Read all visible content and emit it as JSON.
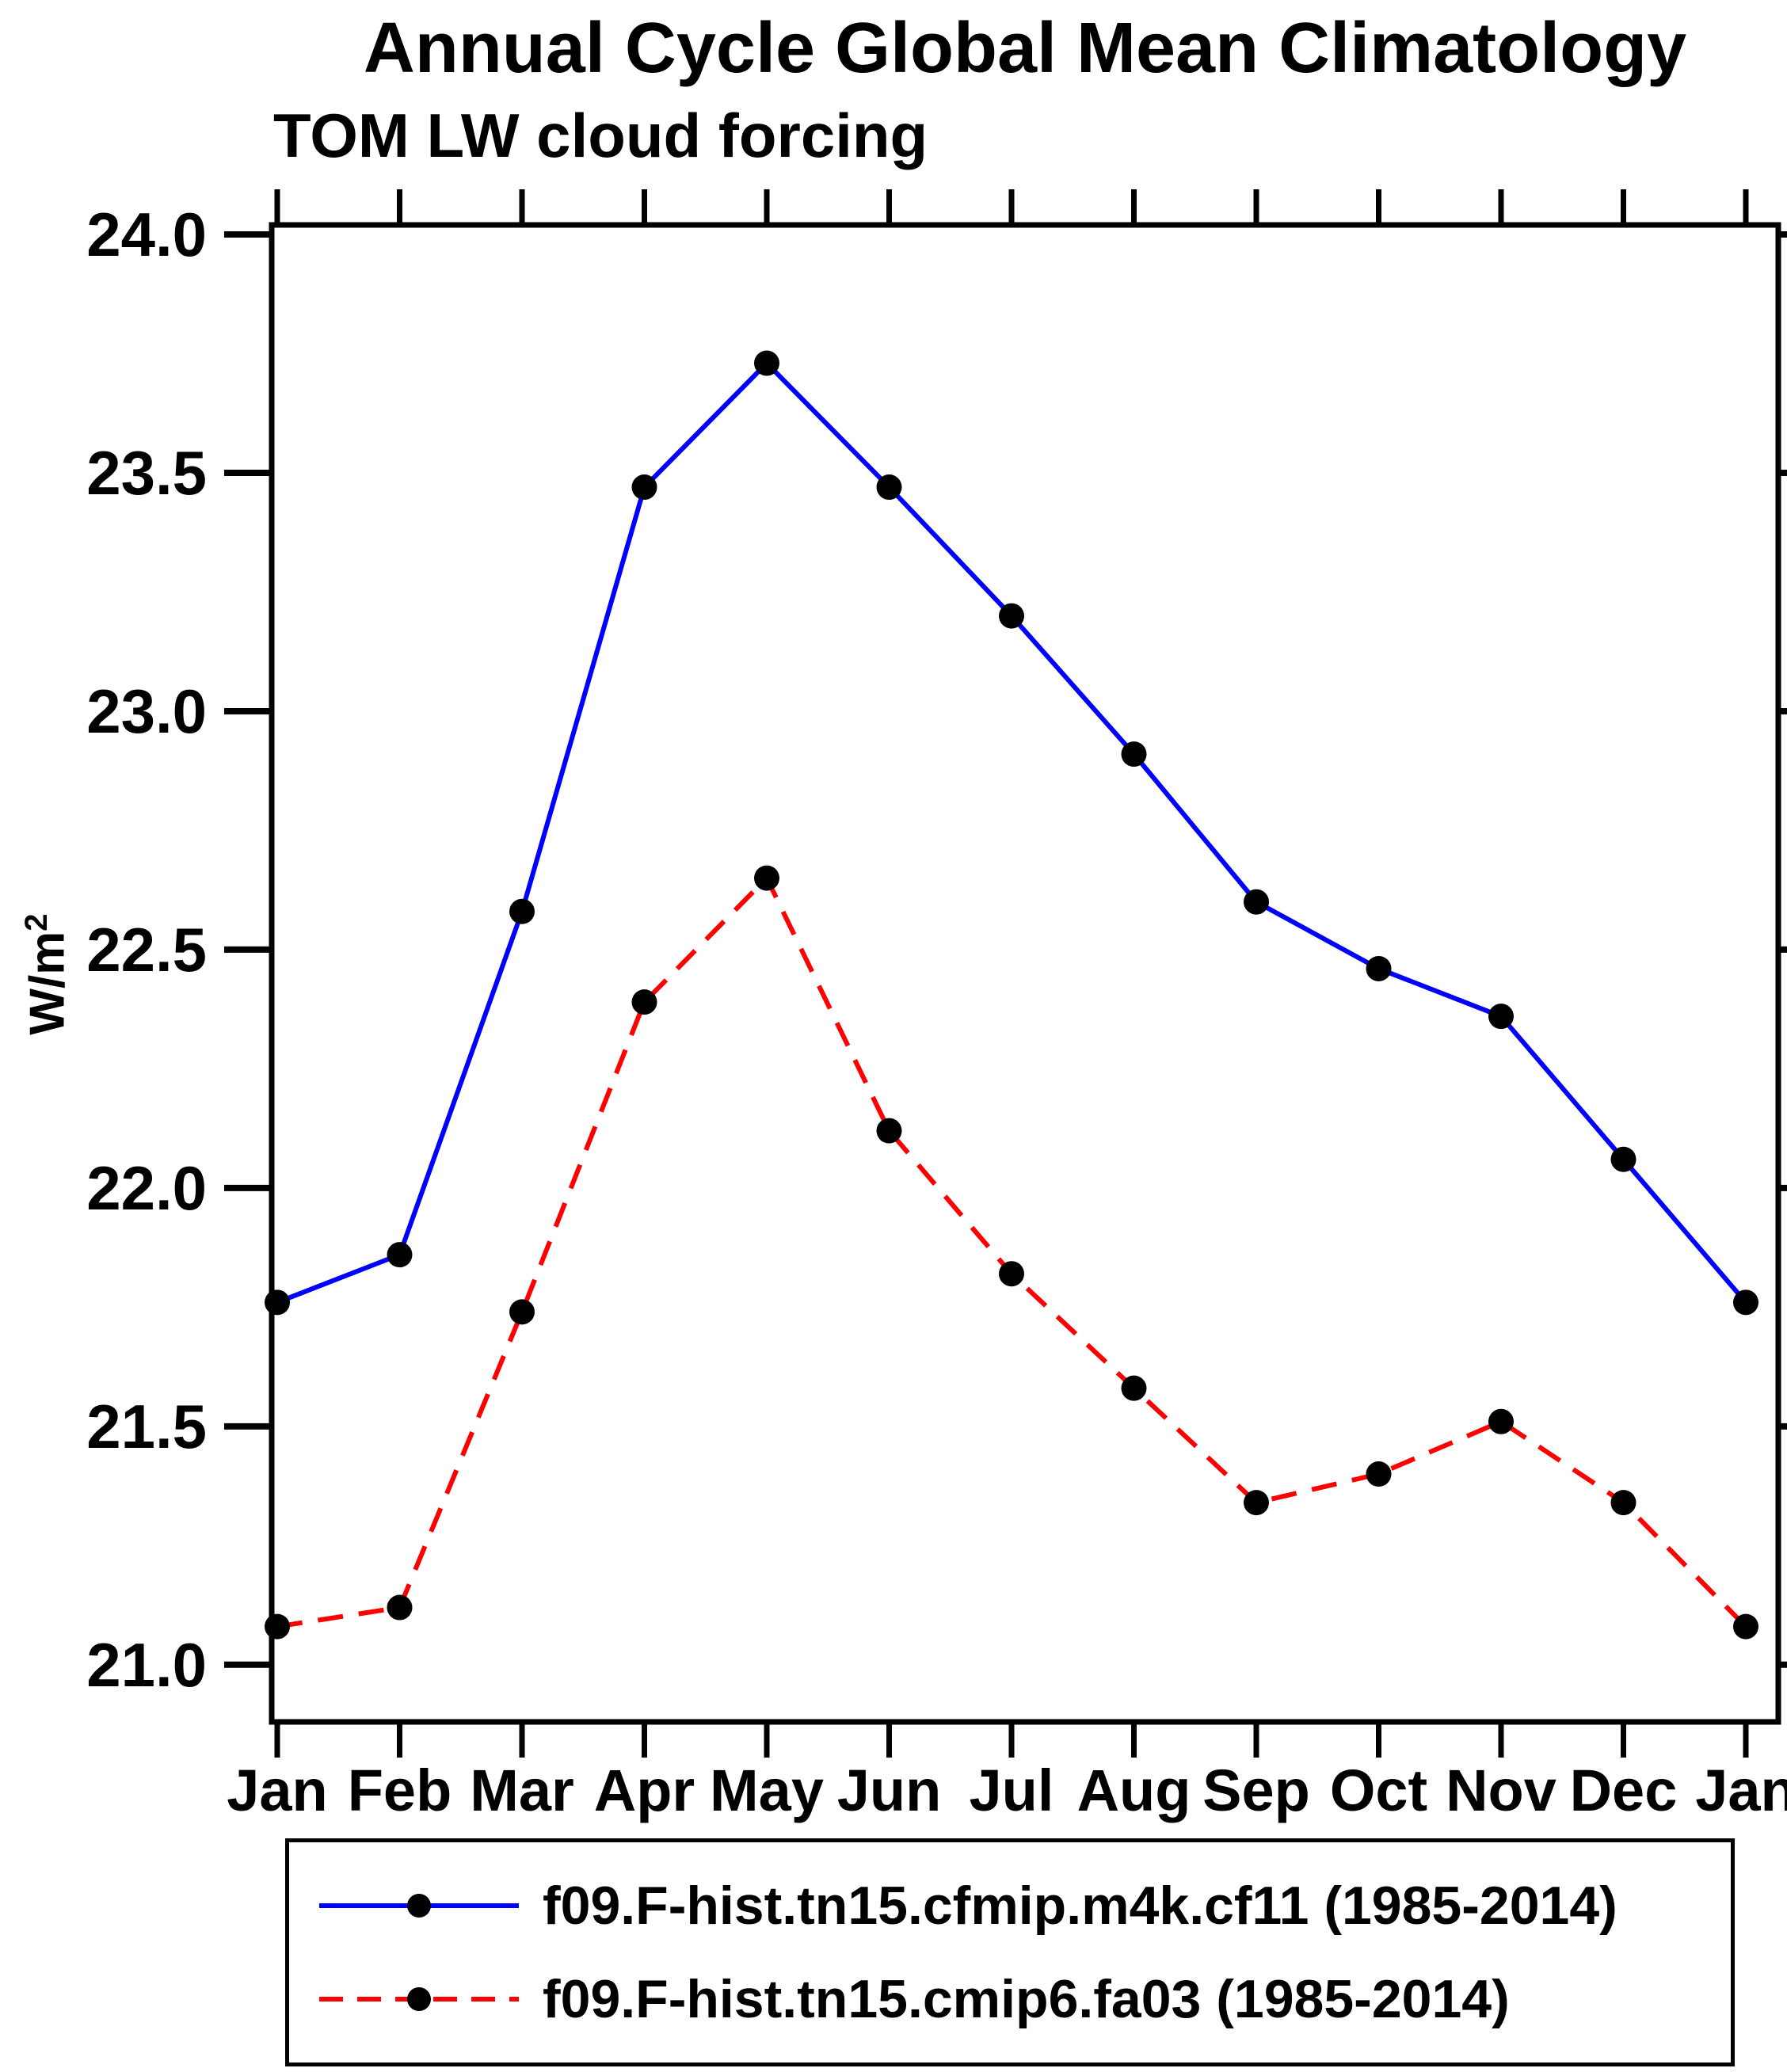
{
  "chart_data": {
    "type": "line",
    "title": "Annual Cycle Global Mean Climatology",
    "subtitle": "TOM LW cloud forcing",
    "ylabel_base": "W/m",
    "ylabel_exponent": "2",
    "xlabel": "",
    "categories": [
      "Jan",
      "Feb",
      "Mar",
      "Apr",
      "May",
      "Jun",
      "Jul",
      "Aug",
      "Sep",
      "Oct",
      "Nov",
      "Dec",
      "Jan"
    ],
    "yticks": [
      21.0,
      21.5,
      22.0,
      22.5,
      23.0,
      23.5,
      24.0
    ],
    "ylim": [
      20.88,
      24.02
    ],
    "grid": false,
    "legend_position": "bottom",
    "axis_color": "#000000",
    "marker": {
      "shape": "circle",
      "color": "#000000"
    },
    "series": [
      {
        "name": "f09.F-hist.tn15.cfmip.m4k.cf11 (1985-2014)",
        "color": "#0000ff",
        "line_style": "solid",
        "values": [
          21.76,
          21.86,
          22.58,
          23.47,
          23.73,
          23.47,
          23.2,
          22.91,
          22.6,
          22.46,
          22.36,
          22.06,
          21.76
        ]
      },
      {
        "name": "f09.F-hist.tn15.cmip6.fa03 (1985-2014)",
        "color": "#ff0000",
        "line_style": "dashed",
        "values": [
          21.08,
          21.12,
          21.74,
          22.39,
          22.65,
          22.12,
          21.82,
          21.58,
          21.34,
          21.4,
          21.51,
          21.34,
          21.08
        ]
      }
    ]
  }
}
